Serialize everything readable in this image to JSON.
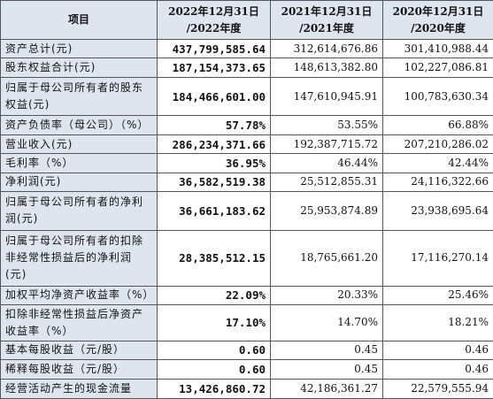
{
  "table": {
    "header": [
      [
        "项目"
      ],
      [
        "2022年12月31日",
        "/2022年度"
      ],
      [
        "2021年12月31日",
        "/2021年度"
      ],
      [
        "2020年12月31日",
        "/2020年度"
      ]
    ],
    "rows": [
      [
        "资产总计(元)",
        "437,799,585.64",
        "312,614,676.86",
        "301,410,988.44"
      ],
      [
        "股东权益合计(元)",
        "187,154,373.65",
        "148,613,382.80",
        "102,227,086.81"
      ],
      [
        "归属于母公司所有者的股东权益(元)",
        "184,466,601.00",
        "147,610,945.91",
        "100,783,630.34"
      ],
      [
        "资产负债率（母公司）（%）",
        "57.78%",
        "53.55%",
        "66.88%"
      ],
      [
        "营业收入(元)",
        "286,234,371.66",
        "192,387,715.72",
        "207,210,286.02"
      ],
      [
        "毛利率（%）",
        "36.95%",
        "46.44%",
        "42.44%"
      ],
      [
        "净利润(元)",
        "36,582,519.38",
        "25,512,855.31",
        "24,116,322.66"
      ],
      [
        "归属于母公司所有者的净利润(元)",
        "36,661,183.62",
        "25,953,874.89",
        "23,938,695.64"
      ],
      [
        "归属于母公司所有者的扣除非经常性损益后的净利润(元)",
        "28,385,512.15",
        "18,765,661.20",
        "17,116,270.14"
      ],
      [
        "加权平均净资产收益率（%）",
        "22.09%",
        "20.33%",
        "25.46%"
      ],
      [
        "扣除非经常性损益后净资产收益率（%）",
        "17.10%",
        "14.70%",
        "18.21%"
      ],
      [
        "基本每股收益（元/股）",
        "0.60",
        "0.45",
        "0.46"
      ],
      [
        "稀释每股收益（元/股）",
        "0.60",
        "0.45",
        "0.46"
      ],
      [
        "经营活动产生的现金流量",
        "13,426,860.72",
        "42,186,361.27",
        "22,579,555.94"
      ]
    ]
  }
}
